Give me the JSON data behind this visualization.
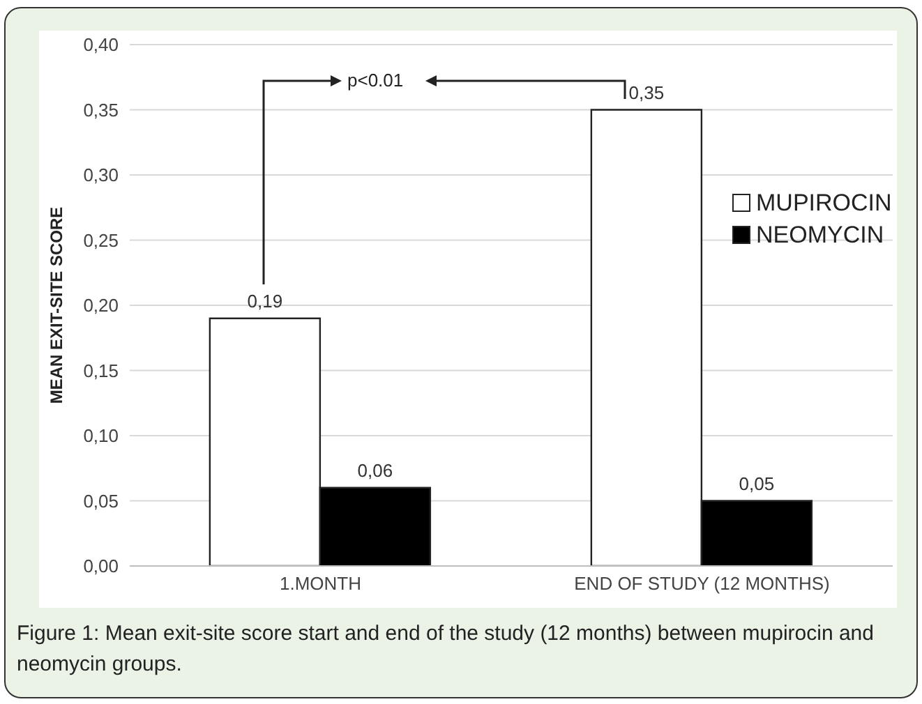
{
  "chart_data": {
    "type": "bar",
    "ylabel": "MEAN EXIT-SITE SCORE",
    "categories": [
      "1.MONTH",
      "END OF STUDY (12 MONTHS)"
    ],
    "series": [
      {
        "name": "MUPIROCIN",
        "color": "#ffffff",
        "values": [
          0.19,
          0.35
        ],
        "value_labels": [
          "0,19",
          "0,35"
        ]
      },
      {
        "name": "NEOMYCIN",
        "color": "#000000",
        "values": [
          0.06,
          0.05
        ],
        "value_labels": [
          "0,06",
          "0,05"
        ]
      }
    ],
    "ylim": [
      0,
      0.4
    ],
    "yticks": [
      {
        "value": 0,
        "label": "0,00"
      },
      {
        "value": 0.05,
        "label": "0,05"
      },
      {
        "value": 0.1,
        "label": "0,10"
      },
      {
        "value": 0.15,
        "label": "0,15"
      },
      {
        "value": 0.2,
        "label": "0,20"
      },
      {
        "value": 0.25,
        "label": "0,25"
      },
      {
        "value": 0.3,
        "label": "0,30"
      },
      {
        "value": 0.35,
        "label": "0,35"
      },
      {
        "value": 0.4,
        "label": "0,40"
      }
    ],
    "grid": "y",
    "legend": "right",
    "annotations": [
      "p<0.01",
      "Figure 1: Mean exit-site score start and end of the study (12 months) between mupirocin and neomycin groups."
    ]
  }
}
